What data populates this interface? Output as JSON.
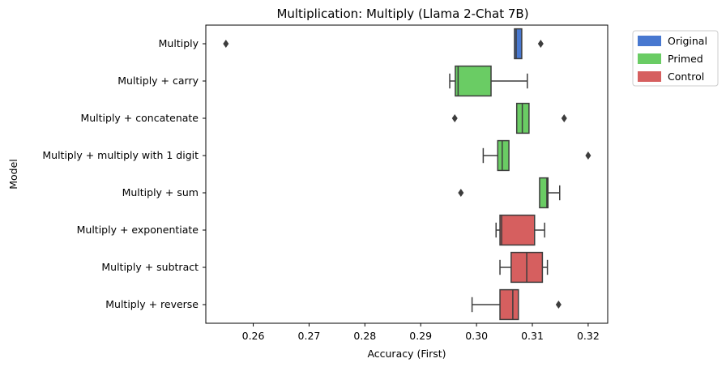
{
  "chart_data": {
    "type": "boxplot",
    "orientation": "horizontal",
    "title": "Multiplication: Multiply (Llama 2-Chat 7B)",
    "xlabel": "Accuracy (First)",
    "ylabel": "Model",
    "xlim": [
      0.2515,
      0.3235
    ],
    "xticks": [
      0.26,
      0.27,
      0.28,
      0.29,
      0.3,
      0.31,
      0.32
    ],
    "xtick_labels": [
      "0.26",
      "0.27",
      "0.28",
      "0.29",
      "0.30",
      "0.31",
      "0.32"
    ],
    "grid": false,
    "legend_position": "outside-top-right",
    "legend": [
      {
        "label": "Original",
        "color": "#4878d0"
      },
      {
        "label": "Primed",
        "color": "#6acc64"
      },
      {
        "label": "Control",
        "color": "#d65f5f"
      }
    ],
    "categories": [
      "Multiply",
      "Multiply + carry",
      "Multiply + concatenate",
      "Multiply + multiply with 1 digit",
      "Multiply + sum",
      "Multiply + exponentiate",
      "Multiply + subtract",
      "Multiply + reverse"
    ],
    "boxes": [
      {
        "label": "Multiply",
        "group": "Original",
        "whisker_low": 0.3068,
        "q1": 0.3068,
        "median": 0.3071,
        "q3": 0.3081,
        "whisker_high": 0.3081,
        "outliers": [
          0.2551,
          0.3115
        ]
      },
      {
        "label": "Multiply + carry",
        "group": "Primed",
        "whisker_low": 0.2952,
        "q1": 0.2962,
        "median": 0.2967,
        "q3": 0.3026,
        "whisker_high": 0.3091,
        "outliers": []
      },
      {
        "label": "Multiply + concatenate",
        "group": "Primed",
        "whisker_low": 0.3072,
        "q1": 0.3072,
        "median": 0.3082,
        "q3": 0.3094,
        "whisker_high": 0.3094,
        "outliers": [
          0.2961,
          0.3157
        ]
      },
      {
        "label": "Multiply + multiply with 1 digit",
        "group": "Primed",
        "whisker_low": 0.3012,
        "q1": 0.3038,
        "median": 0.3046,
        "q3": 0.3058,
        "whisker_high": 0.3058,
        "outliers": [
          0.32
        ]
      },
      {
        "label": "Multiply + sum",
        "group": "Primed",
        "whisker_low": 0.3113,
        "q1": 0.3113,
        "median": 0.3126,
        "q3": 0.3128,
        "whisker_high": 0.3149,
        "outliers": [
          0.2972
        ]
      },
      {
        "label": "Multiply + exponentiate",
        "group": "Control",
        "whisker_low": 0.3035,
        "q1": 0.3042,
        "median": 0.3045,
        "q3": 0.3104,
        "whisker_high": 0.3122,
        "outliers": []
      },
      {
        "label": "Multiply + subtract",
        "group": "Control",
        "whisker_low": 0.3042,
        "q1": 0.3062,
        "median": 0.309,
        "q3": 0.3118,
        "whisker_high": 0.3127,
        "outliers": []
      },
      {
        "label": "Multiply + reverse",
        "group": "Control",
        "whisker_low": 0.2992,
        "q1": 0.3042,
        "median": 0.3065,
        "q3": 0.3075,
        "whisker_high": 0.3075,
        "outliers": [
          0.3147
        ]
      }
    ]
  }
}
